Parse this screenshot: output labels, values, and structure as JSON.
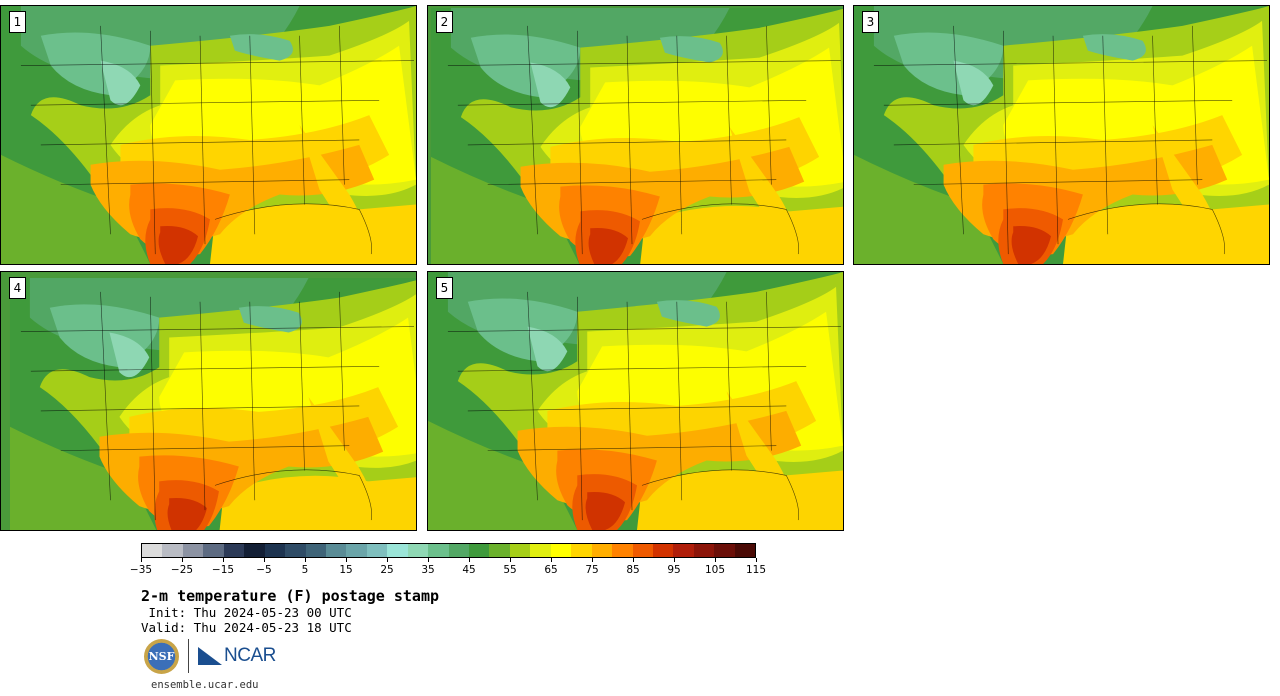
{
  "panels": [
    {
      "number": "1",
      "warmth": 1.0
    },
    {
      "number": "2",
      "warmth": 0.95
    },
    {
      "number": "3",
      "warmth": 1.0
    },
    {
      "number": "4",
      "warmth": 0.92
    },
    {
      "number": "5",
      "warmth": 0.9
    }
  ],
  "colorbar": {
    "colors": [
      "#dcdcdc",
      "#b9bcc4",
      "#8c93a3",
      "#5d6b82",
      "#2c3a57",
      "#131f35",
      "#1e3450",
      "#2f4c66",
      "#3f6478",
      "#5a8c96",
      "#6ba5a9",
      "#7fbfbe",
      "#9be5d8",
      "#8fd8b4",
      "#6cc08c",
      "#53a865",
      "#3f9a3c",
      "#6bb12c",
      "#a6cf18",
      "#e1ef10",
      "#ffff00",
      "#ffd500",
      "#ffae00",
      "#ff8200",
      "#ef5a00",
      "#d23300",
      "#b01e0a",
      "#8c1509",
      "#6b0f08",
      "#4a0a05"
    ],
    "tick_labels": [
      "−35",
      "−25",
      "−15",
      "−5",
      "5",
      "15",
      "25",
      "35",
      "45",
      "55",
      "65",
      "75",
      "85",
      "95",
      "105",
      "115"
    ]
  },
  "title": "2-m temperature (F) postage stamp",
  "init_text": " Init: Thu 2024-05-23 00 UTC",
  "valid_text": "Valid: Thu 2024-05-23 18 UTC",
  "logos": {
    "nsf": "NSF",
    "ncar": "NCAR"
  },
  "url": "ensemble.ucar.edu"
}
